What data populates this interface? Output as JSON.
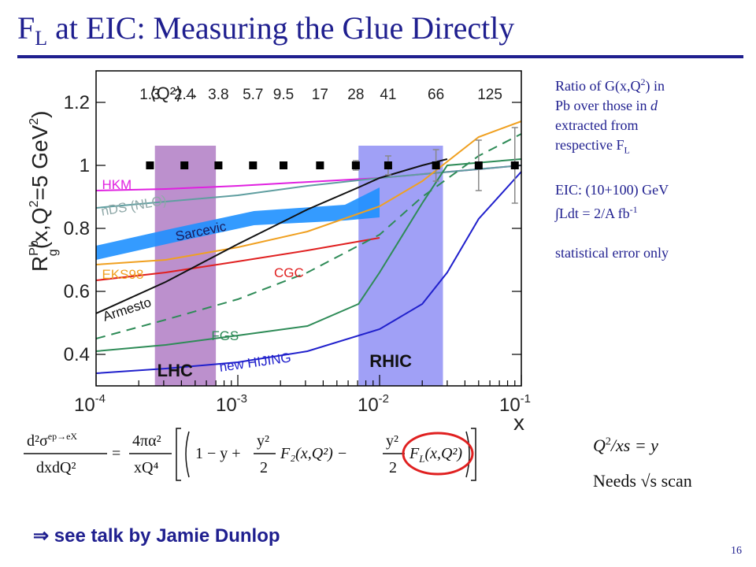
{
  "slide": {
    "title_main": "F",
    "title_sub": "L",
    "title_rest": " at EIC: Measuring the Glue Directly",
    "page_number": "16",
    "talk_note": "⇒ see talk by Jamie Dunlop"
  },
  "side_text": {
    "line1": "Ratio of G(x,Q",
    "line1_sup": "2",
    "line1_end": ") in",
    "line2_a": "Pb over those in ",
    "line2_b": "d",
    "line3": "extracted from",
    "line4": "respective F",
    "line4_sub": "L",
    "eic_line": "EIC: (10+100) GeV",
    "lumi_a": "∫Ldt = 2/A fb",
    "lumi_sup": "-1",
    "stat_line": "statistical error only"
  },
  "formula": {
    "lhs_num": "d²σ",
    "lhs_sup": "ep→eX",
    "lhs_den": "dxdQ²",
    "pref_num": "4πα²",
    "pref_den": "xQ⁴",
    "term1": "1 − y +",
    "frac_num": "y²",
    "frac_den": "2",
    "f2": "F₂(x,Q²) −",
    "fl": "F",
    "fl_sub": "L",
    "fl_args": "(x,Q²)"
  },
  "notes": {
    "q2_relation": "Q",
    "q2_sup": "2",
    "q2_rest": "/xs = y",
    "needs": "Needs √s scan"
  },
  "colors": {
    "title": "#1f1f8f",
    "lhc_band": "#b07cc4",
    "rhic_band": "#8f8ff5",
    "sarcevic_band": "#1e90ff",
    "fl_circle": "#e02020"
  },
  "chart_data": {
    "type": "line",
    "xlabel": "x",
    "ylabel_main": "R",
    "ylabel_sup": "Pb",
    "ylabel_sub": "g",
    "ylabel_rest": "(x,Q",
    "ylabel_sup2": "2",
    "ylabel_end": "=5 GeV",
    "ylabel_sup3": "2",
    "ylabel_close": ")",
    "x_scale": "log",
    "xlim": [
      0.0001,
      0.1
    ],
    "ylim": [
      0.3,
      1.3
    ],
    "y_ticks": [
      {
        "value": 0.4,
        "label": "0.4"
      },
      {
        "value": 0.6,
        "label": "0.6"
      },
      {
        "value": 0.8,
        "label": "0.8"
      },
      {
        "value": 1.0,
        "label": "1"
      },
      {
        "value": 1.2,
        "label": "1.2"
      }
    ],
    "x_ticks": [
      {
        "value": 0.0001,
        "base": "10",
        "exp": "-4"
      },
      {
        "value": 0.001,
        "base": "10",
        "exp": "-3"
      },
      {
        "value": 0.01,
        "base": "10",
        "exp": "-2"
      },
      {
        "value": 0.1,
        "base": "10",
        "exp": "-1"
      }
    ],
    "q2_header": {
      "label": "⟨Q²⟩→",
      "values": [
        {
          "label": "1.3",
          "x": 0.00024
        },
        {
          "label": "2.4",
          "x": 0.00042
        },
        {
          "label": "3.8",
          "x": 0.00073
        },
        {
          "label": "5.7",
          "x": 0.00128
        },
        {
          "label": "9.5",
          "x": 0.0021
        },
        {
          "label": "17",
          "x": 0.0038
        },
        {
          "label": "28",
          "x": 0.0068
        },
        {
          "label": "41",
          "x": 0.0115
        },
        {
          "label": "66",
          "x": 0.025
        },
        {
          "label": "125",
          "x": 0.06
        }
      ]
    },
    "bands": [
      {
        "name": "LHC",
        "x": [
          0.00026,
          0.0007
        ],
        "label_x": 0.00027,
        "label_y": 0.33
      },
      {
        "name": "RHIC",
        "x": [
          0.0071,
          0.028
        ],
        "label_x": 0.0085,
        "label_y": 0.36
      }
    ],
    "sarcevic_band": {
      "name": "Sarcevic",
      "x": [
        0.0001,
        0.00035,
        0.0013,
        0.0057,
        0.01
      ],
      "y_low": [
        0.7,
        0.755,
        0.81,
        0.825,
        0.835
      ],
      "y_high": [
        0.745,
        0.8,
        0.855,
        0.875,
        0.93
      ]
    },
    "series": [
      {
        "name": "HKM",
        "color": "#e020e0",
        "style": "solid",
        "x": [
          0.0001,
          0.00031,
          0.001,
          0.01,
          0.1
        ],
        "y": [
          0.92,
          0.925,
          0.935,
          0.96,
          1.0
        ],
        "label_x": 0.00011,
        "label_y": 0.925
      },
      {
        "name": "nDS (NLO)",
        "color": "#5f9ea0",
        "style": "solid",
        "x": [
          0.0001,
          0.00031,
          0.001,
          0.0031,
          0.01,
          0.1
        ],
        "y": [
          0.865,
          0.885,
          0.905,
          0.935,
          0.96,
          1.0
        ],
        "label_x": 0.00011,
        "label_y": 0.84
      },
      {
        "name": "EKS98",
        "color": "#f0a020",
        "style": "solid",
        "x": [
          0.0001,
          0.00031,
          0.001,
          0.0031,
          0.01,
          0.02,
          0.05,
          0.1
        ],
        "y": [
          0.685,
          0.7,
          0.74,
          0.79,
          0.87,
          0.95,
          1.09,
          1.14
        ],
        "label_x": 0.00011,
        "label_y": 0.64
      },
      {
        "name": "CGC",
        "color": "#e02020",
        "style": "solid",
        "x": [
          0.0001,
          0.00031,
          0.001,
          0.0031,
          0.01
        ],
        "y": [
          0.635,
          0.66,
          0.695,
          0.73,
          0.77
        ],
        "label_x": 0.0018,
        "label_y": 0.645
      },
      {
        "name": "Armesto",
        "color": "#111111",
        "style": "solid",
        "x": [
          0.0001,
          0.00031,
          0.001,
          0.0031,
          0.0071,
          0.01,
          0.02,
          0.03
        ],
        "y": [
          0.53,
          0.63,
          0.75,
          0.86,
          0.93,
          0.96,
          1.0,
          1.02
        ],
        "label_x": 0.000115,
        "label_y": 0.505
      },
      {
        "name": "Armesto (dashed)",
        "color": "#2e8b57",
        "style": "dashed",
        "x": [
          0.0001,
          0.00031,
          0.001,
          0.0031,
          0.01,
          0.02,
          0.05,
          0.1
        ],
        "y": [
          0.45,
          0.51,
          0.575,
          0.66,
          0.78,
          0.9,
          1.03,
          1.1
        ]
      },
      {
        "name": "FGS",
        "color": "#2e8b57",
        "style": "solid",
        "x": [
          0.0001,
          0.00031,
          0.001,
          0.0031,
          0.0071,
          0.01,
          0.02,
          0.03,
          0.1
        ],
        "y": [
          0.41,
          0.43,
          0.46,
          0.49,
          0.56,
          0.66,
          0.88,
          1.0,
          1.02
        ],
        "label_x": 0.00065,
        "label_y": 0.445
      },
      {
        "name": "new HIJING",
        "color": "#2020cc",
        "style": "solid",
        "x": [
          0.0001,
          0.00031,
          0.001,
          0.0031,
          0.01,
          0.02,
          0.03,
          0.05,
          0.1
        ],
        "y": [
          0.34,
          0.355,
          0.375,
          0.41,
          0.48,
          0.56,
          0.66,
          0.83,
          0.98
        ],
        "label_x": 0.00075,
        "label_y": 0.345
      }
    ],
    "eic_points": {
      "x": [
        0.00024,
        0.00042,
        0.00073,
        0.00128,
        0.0021,
        0.0038,
        0.0068,
        0.0115,
        0.025,
        0.05,
        0.09
      ],
      "y": [
        1,
        1,
        1,
        1,
        1,
        1,
        1,
        1,
        1,
        1,
        1
      ],
      "err": [
        0.005,
        0.005,
        0.005,
        0.005,
        0.01,
        0.01,
        0.015,
        0.03,
        0.05,
        0.08,
        0.12
      ]
    }
  }
}
